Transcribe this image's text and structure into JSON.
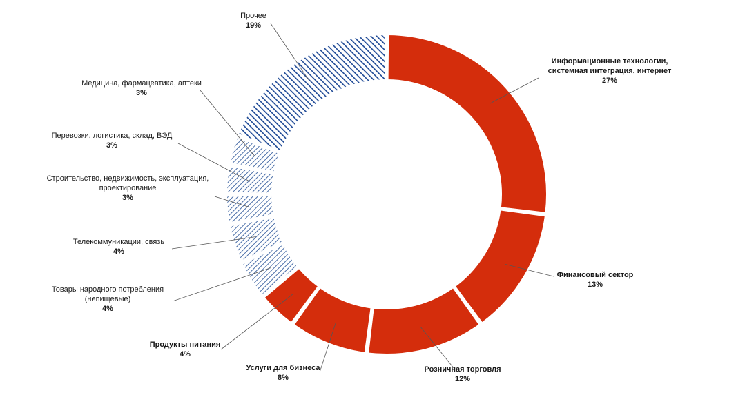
{
  "chart_data": {
    "type": "pie",
    "variant": "donut",
    "title": "",
    "series": [
      {
        "label": "Информационные технологии, системная интеграция, интернет",
        "lines": [
          "Информационные технологии,",
          "системная интеграция, интернет"
        ],
        "value": 27,
        "pct": "27%",
        "style": "solid",
        "bold": true
      },
      {
        "label": "Финансовый сектор",
        "lines": [
          "Финансовый сектор"
        ],
        "value": 13,
        "pct": "13%",
        "style": "solid",
        "bold": true
      },
      {
        "label": "Розничная торговля",
        "lines": [
          "Розничная торговля"
        ],
        "value": 12,
        "pct": "12%",
        "style": "solid",
        "bold": true
      },
      {
        "label": "Услуги для бизнеса",
        "lines": [
          "Услуги для бизнеса"
        ],
        "value": 8,
        "pct": "8%",
        "style": "solid",
        "bold": true
      },
      {
        "label": "Продукты питания",
        "lines": [
          "Продукты питания"
        ],
        "value": 4,
        "pct": "4%",
        "style": "solid",
        "bold": true
      },
      {
        "label": "Товары народного потребления (непищевые)",
        "lines": [
          "Товары народного потребления",
          "(непищевые)"
        ],
        "value": 4,
        "pct": "4%",
        "style": "light-hatch",
        "bold": false
      },
      {
        "label": "Телекоммуникации, связь",
        "lines": [
          "Телекоммуникации, связь"
        ],
        "value": 4,
        "pct": "4%",
        "style": "light-hatch",
        "bold": false
      },
      {
        "label": "Строительство, недвижимость, эксплуатация, проектирование",
        "lines": [
          "Строительство, недвижимость, эксплуатация,",
          "проектирование"
        ],
        "value": 3,
        "pct": "3%",
        "style": "light-hatch",
        "bold": false
      },
      {
        "label": "Перевозки, логистика, склад, ВЭД",
        "lines": [
          "Перевозки, логистика, склад, ВЭД"
        ],
        "value": 3,
        "pct": "3%",
        "style": "light-hatch",
        "bold": false
      },
      {
        "label": "Медицина, фармацевтика, аптеки",
        "lines": [
          "Медицина, фармацевтика, аптеки"
        ],
        "value": 3,
        "pct": "3%",
        "style": "light-hatch",
        "bold": false
      },
      {
        "label": "Прочее",
        "lines": [
          "Прочее"
        ],
        "value": 19,
        "pct": "19%",
        "style": "dark-hatch",
        "bold": false
      }
    ],
    "colors": {
      "solid": "#d42d0c",
      "light_hatch": "#4a6ea8",
      "dark_hatch": "#1f4a96"
    }
  }
}
